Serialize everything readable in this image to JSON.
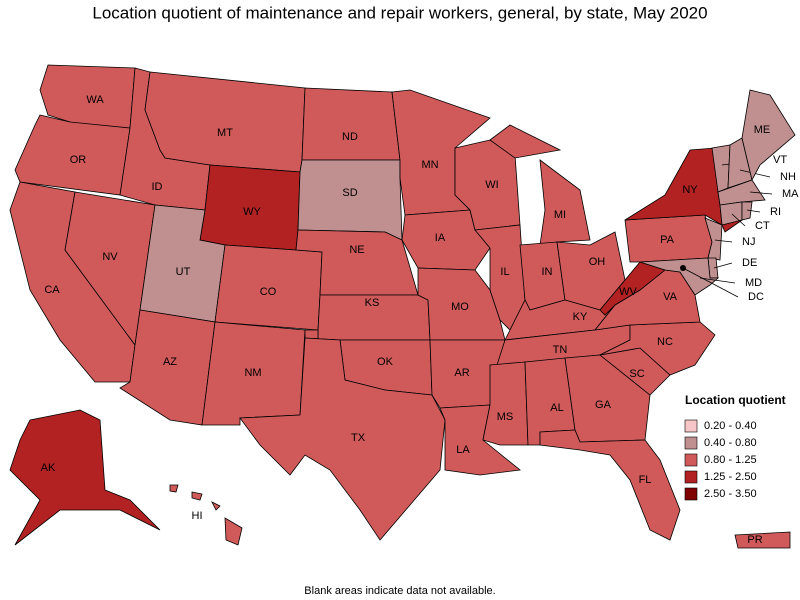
{
  "title": "Location quotient of maintenance and repair workers, general, by state, May 2020",
  "legend": {
    "title": "Location quotient",
    "bins": [
      {
        "label": "0.20 - 0.40",
        "color": "#f6c6c6"
      },
      {
        "label": "0.40 - 0.80",
        "color": "#c08f8f"
      },
      {
        "label": "0.80 - 1.25",
        "color": "#d05a5a"
      },
      {
        "label": "1.25 - 2.50",
        "color": "#b22222"
      },
      {
        "label": "2.50 - 3.50",
        "color": "#7e0000"
      }
    ]
  },
  "states": [
    {
      "label": "WA",
      "bin": 2
    },
    {
      "label": "OR",
      "bin": 2
    },
    {
      "label": "CA",
      "bin": 2
    },
    {
      "label": "NV",
      "bin": 2
    },
    {
      "label": "ID",
      "bin": 2
    },
    {
      "label": "MT",
      "bin": 2
    },
    {
      "label": "WY",
      "bin": 3
    },
    {
      "label": "UT",
      "bin": 1
    },
    {
      "label": "CO",
      "bin": 2
    },
    {
      "label": "AZ",
      "bin": 2
    },
    {
      "label": "NM",
      "bin": 2
    },
    {
      "label": "ND",
      "bin": 2
    },
    {
      "label": "SD",
      "bin": 1
    },
    {
      "label": "NE",
      "bin": 2
    },
    {
      "label": "KS",
      "bin": 2
    },
    {
      "label": "OK",
      "bin": 2
    },
    {
      "label": "TX",
      "bin": 2
    },
    {
      "label": "MN",
      "bin": 2
    },
    {
      "label": "IA",
      "bin": 2
    },
    {
      "label": "MO",
      "bin": 2
    },
    {
      "label": "AR",
      "bin": 2
    },
    {
      "label": "LA",
      "bin": 2
    },
    {
      "label": "WI",
      "bin": 2
    },
    {
      "label": "IL",
      "bin": 2
    },
    {
      "label": "MI",
      "bin": 2
    },
    {
      "label": "IN",
      "bin": 2
    },
    {
      "label": "OH",
      "bin": 2
    },
    {
      "label": "KY",
      "bin": 2
    },
    {
      "label": "TN",
      "bin": 2
    },
    {
      "label": "MS",
      "bin": 2
    },
    {
      "label": "AL",
      "bin": 2
    },
    {
      "label": "GA",
      "bin": 2
    },
    {
      "label": "FL",
      "bin": 2
    },
    {
      "label": "SC",
      "bin": 2
    },
    {
      "label": "NC",
      "bin": 2
    },
    {
      "label": "VA",
      "bin": 2
    },
    {
      "label": "WV",
      "bin": 3
    },
    {
      "label": "PA",
      "bin": 2
    },
    {
      "label": "NY",
      "bin": 3
    },
    {
      "label": "NJ",
      "bin": 1
    },
    {
      "label": "DE",
      "bin": 1
    },
    {
      "label": "MD",
      "bin": 1
    },
    {
      "label": "VT",
      "bin": 1
    },
    {
      "label": "NH",
      "bin": 1
    },
    {
      "label": "ME",
      "bin": 1
    },
    {
      "label": "MA",
      "bin": 1
    },
    {
      "label": "CT",
      "bin": 1
    },
    {
      "label": "RI",
      "bin": 1
    },
    {
      "label": "AK",
      "bin": 3
    },
    {
      "label": "HI",
      "bin": 2
    },
    {
      "label": "PR",
      "bin": 2
    },
    {
      "label": "DC",
      "bin": 1
    }
  ],
  "footnote": "Blank areas indicate data not available."
}
